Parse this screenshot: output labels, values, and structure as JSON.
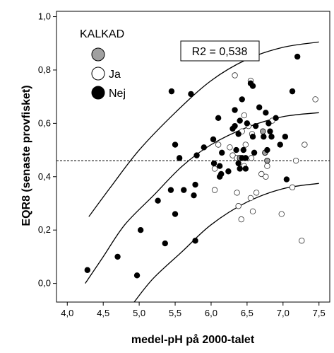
{
  "chart_data": {
    "type": "scatter",
    "title": "",
    "xlabel": "medel-pH på 2000-talet",
    "ylabel": "EQR8 (senaste provfisket)",
    "xlim": [
      3.85,
      7.65
    ],
    "ylim": [
      -0.07,
      1.02
    ],
    "x_ticks": [
      "4,0",
      "4,5",
      "5,0",
      "5,5",
      "6,0",
      "6,5",
      "7,0",
      "7,5"
    ],
    "y_ticks": [
      "0,0",
      "0,2",
      "0,4",
      "0,6",
      "0,8",
      "1,0"
    ],
    "x_tick_values": [
      4.0,
      4.5,
      5.0,
      5.5,
      6.0,
      6.5,
      7.0,
      7.5
    ],
    "y_tick_values": [
      0.0,
      0.2,
      0.4,
      0.6,
      0.8,
      1.0
    ],
    "grid": false,
    "annotation": "R2 = 0,538",
    "reference_line_y": 0.46,
    "legend": {
      "title": "KALKAD",
      "placement": "top-left",
      "entries": [
        {
          "label": "",
          "color": "#a0a0a0"
        },
        {
          "label": "Ja",
          "color": "#ffffff"
        },
        {
          "label": "Nej",
          "color": "#000000"
        }
      ]
    },
    "fit_curves": [
      {
        "name": "upper",
        "points": [
          [
            4.3,
            0.25
          ],
          [
            4.6,
            0.36
          ],
          [
            5.0,
            0.5
          ],
          [
            5.5,
            0.64
          ],
          [
            6.0,
            0.76
          ],
          [
            6.5,
            0.84
          ],
          [
            7.0,
            0.885
          ],
          [
            7.5,
            0.905
          ]
        ]
      },
      {
        "name": "mean",
        "points": [
          [
            4.25,
            0.0
          ],
          [
            4.5,
            0.1
          ],
          [
            4.8,
            0.22
          ],
          [
            5.2,
            0.33
          ],
          [
            5.6,
            0.44
          ],
          [
            6.0,
            0.52
          ],
          [
            6.5,
            0.585
          ],
          [
            7.0,
            0.625
          ],
          [
            7.5,
            0.64
          ]
        ]
      },
      {
        "name": "lower",
        "points": [
          [
            4.93,
            -0.07
          ],
          [
            5.2,
            0.02
          ],
          [
            5.6,
            0.12
          ],
          [
            6.0,
            0.22
          ],
          [
            6.5,
            0.305
          ],
          [
            7.0,
            0.355
          ],
          [
            7.5,
            0.375
          ]
        ]
      }
    ],
    "series": [
      {
        "name": "",
        "color": "#a0a0a0",
        "points": [
          [
            6.4,
            0.47
          ],
          [
            6.72,
            0.57
          ],
          [
            6.75,
            0.49
          ],
          [
            6.78,
            0.46
          ]
        ]
      },
      {
        "name": "Ja",
        "color": "#ffffff",
        "points": [
          [
            6.33,
            0.78
          ],
          [
            6.55,
            0.76
          ],
          [
            7.45,
            0.69
          ],
          [
            6.46,
            0.63
          ],
          [
            6.52,
            0.59
          ],
          [
            6.85,
            0.61
          ],
          [
            6.43,
            0.57
          ],
          [
            6.57,
            0.56
          ],
          [
            6.48,
            0.52
          ],
          [
            6.26,
            0.51
          ],
          [
            6.1,
            0.52
          ],
          [
            7.3,
            0.52
          ],
          [
            6.3,
            0.48
          ],
          [
            6.36,
            0.47
          ],
          [
            6.56,
            0.47
          ],
          [
            6.78,
            0.44
          ],
          [
            7.18,
            0.46
          ],
          [
            6.46,
            0.44
          ],
          [
            6.05,
            0.43
          ],
          [
            6.7,
            0.41
          ],
          [
            6.76,
            0.4
          ],
          [
            6.05,
            0.35
          ],
          [
            6.36,
            0.34
          ],
          [
            6.63,
            0.34
          ],
          [
            6.55,
            0.32
          ],
          [
            6.38,
            0.29
          ],
          [
            6.58,
            0.27
          ],
          [
            6.98,
            0.26
          ],
          [
            7.13,
            0.36
          ],
          [
            6.42,
            0.24
          ],
          [
            7.26,
            0.16
          ]
        ]
      },
      {
        "name": "Nej",
        "color": "#000000",
        "points": [
          [
            7.2,
            0.85
          ],
          [
            6.55,
            0.75
          ],
          [
            5.45,
            0.72
          ],
          [
            5.72,
            0.71
          ],
          [
            6.58,
            0.74
          ],
          [
            7.13,
            0.72
          ],
          [
            6.43,
            0.69
          ],
          [
            6.67,
            0.66
          ],
          [
            6.33,
            0.65
          ],
          [
            6.76,
            0.64
          ],
          [
            6.1,
            0.62
          ],
          [
            6.4,
            0.61
          ],
          [
            6.33,
            0.59
          ],
          [
            6.5,
            0.6
          ],
          [
            6.62,
            0.59
          ],
          [
            6.8,
            0.6
          ],
          [
            6.82,
            0.57
          ],
          [
            6.9,
            0.62
          ],
          [
            6.3,
            0.58
          ],
          [
            6.38,
            0.56
          ],
          [
            6.58,
            0.55
          ],
          [
            6.73,
            0.55
          ],
          [
            6.84,
            0.55
          ],
          [
            7.03,
            0.55
          ],
          [
            6.03,
            0.54
          ],
          [
            5.5,
            0.52
          ],
          [
            5.9,
            0.51
          ],
          [
            6.15,
            0.49
          ],
          [
            6.35,
            0.5
          ],
          [
            6.45,
            0.5
          ],
          [
            6.78,
            0.5
          ],
          [
            6.96,
            0.52
          ],
          [
            6.6,
            0.49
          ],
          [
            5.8,
            0.48
          ],
          [
            5.56,
            0.47
          ],
          [
            6.43,
            0.47
          ],
          [
            6.48,
            0.47
          ],
          [
            6.38,
            0.45
          ],
          [
            6.04,
            0.45
          ],
          [
            6.12,
            0.44
          ],
          [
            6.4,
            0.43
          ],
          [
            6.48,
            0.43
          ],
          [
            6.24,
            0.42
          ],
          [
            6.14,
            0.41
          ],
          [
            6.12,
            0.4
          ],
          [
            7.05,
            0.39
          ],
          [
            5.78,
            0.37
          ],
          [
            5.44,
            0.35
          ],
          [
            5.62,
            0.35
          ],
          [
            5.76,
            0.33
          ],
          [
            5.26,
            0.31
          ],
          [
            5.5,
            0.26
          ],
          [
            5.02,
            0.2
          ],
          [
            5.78,
            0.16
          ],
          [
            5.36,
            0.15
          ],
          [
            4.7,
            0.1
          ],
          [
            4.28,
            0.05
          ],
          [
            4.97,
            0.03
          ]
        ]
      }
    ]
  }
}
